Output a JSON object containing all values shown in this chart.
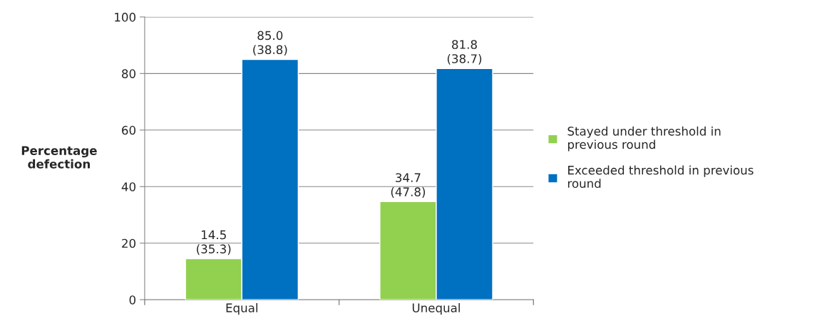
{
  "chart_data": {
    "type": "bar",
    "ylabel": "Percentage defection",
    "categories": [
      "Equal",
      "Unequal"
    ],
    "series": [
      {
        "name": "Stayed under threshold in previous round",
        "color": "#92d050",
        "values": [
          14.5,
          34.7
        ],
        "value_labels": [
          "14.5\n(35.3)",
          "34.7\n(47.8)"
        ]
      },
      {
        "name": "Exceeded threshold in previous round",
        "color": "#0070c0",
        "values": [
          85.0,
          81.8
        ],
        "value_labels": [
          "85.0\n(38.8)",
          "81.8\n(38.7)"
        ]
      }
    ],
    "ylim": [
      0,
      100
    ],
    "yticks": [
      0,
      20,
      40,
      60,
      80,
      100
    ],
    "grid": "y",
    "legend": "right"
  }
}
